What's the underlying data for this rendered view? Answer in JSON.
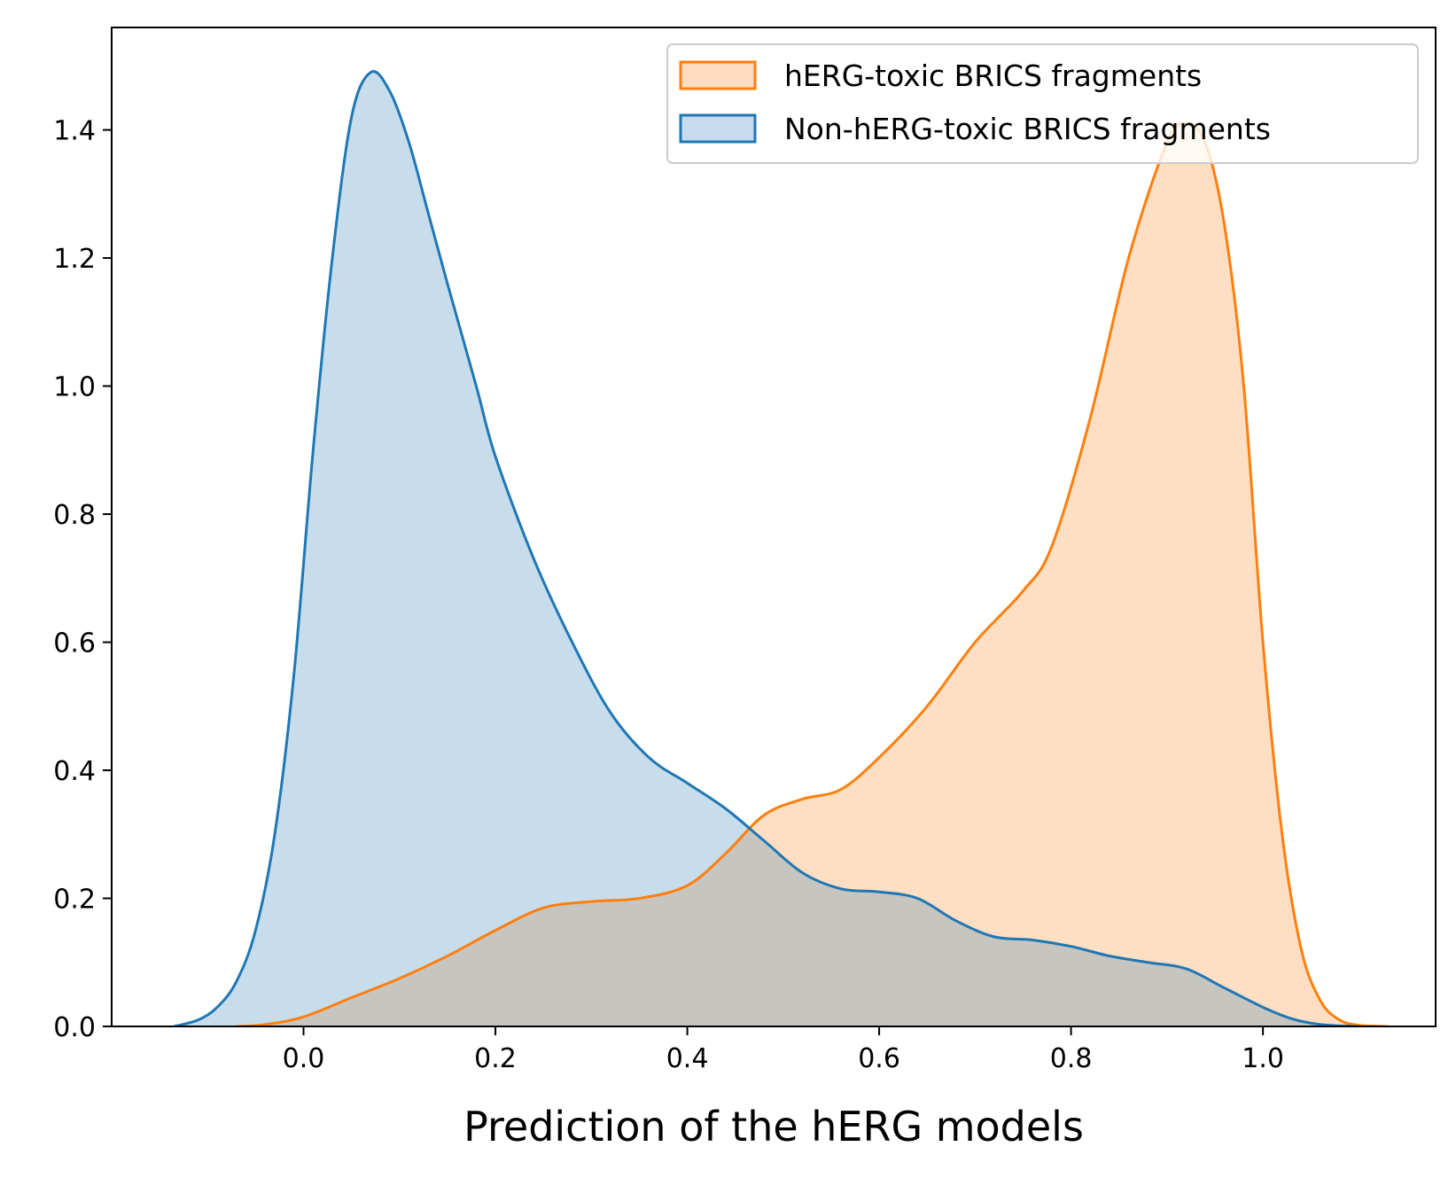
{
  "chart_data": {
    "type": "area",
    "title": "",
    "xlabel": "Prediction of the hERG models",
    "ylabel": "",
    "xlim": [
      -0.2,
      1.18
    ],
    "ylim": [
      0,
      1.56
    ],
    "xticks": [
      0.0,
      0.2,
      0.4,
      0.6,
      0.8,
      1.0
    ],
    "xtick_labels": [
      "0.0",
      "0.2",
      "0.4",
      "0.6",
      "0.8",
      "1.0"
    ],
    "yticks": [
      0.0,
      0.2,
      0.4,
      0.6,
      0.8,
      1.0,
      1.2,
      1.4
    ],
    "ytick_labels": [
      "0.0",
      "0.2",
      "0.4",
      "0.6",
      "0.8",
      "1.0",
      "1.2",
      "1.4"
    ],
    "grid": false,
    "legend_position": "top-right",
    "series": [
      {
        "name": "hERG-toxic BRICS fragments",
        "color": "#ff7f0e",
        "fill_color": "#ffdcbf",
        "x": [
          -0.07,
          -0.04,
          0.0,
          0.05,
          0.1,
          0.15,
          0.2,
          0.25,
          0.3,
          0.35,
          0.4,
          0.44,
          0.48,
          0.52,
          0.56,
          0.6,
          0.65,
          0.7,
          0.75,
          0.78,
          0.82,
          0.86,
          0.9,
          0.92,
          0.94,
          0.96,
          0.98,
          1.0,
          1.02,
          1.04,
          1.06,
          1.08,
          1.1,
          1.13
        ],
        "y": [
          0.0,
          0.003,
          0.015,
          0.045,
          0.075,
          0.11,
          0.15,
          0.185,
          0.195,
          0.2,
          0.22,
          0.27,
          0.33,
          0.355,
          0.37,
          0.42,
          0.5,
          0.6,
          0.68,
          0.75,
          0.95,
          1.2,
          1.38,
          1.41,
          1.38,
          1.25,
          1.0,
          0.6,
          0.3,
          0.12,
          0.04,
          0.01,
          0.002,
          0.0
        ]
      },
      {
        "name": "Non-hERG-toxic BRICS fragments",
        "color": "#1f77b4",
        "fill_color": "#c6dbed",
        "x": [
          -0.135,
          -0.11,
          -0.09,
          -0.07,
          -0.05,
          -0.03,
          -0.01,
          0.01,
          0.03,
          0.05,
          0.07,
          0.09,
          0.11,
          0.13,
          0.15,
          0.18,
          0.2,
          0.24,
          0.28,
          0.32,
          0.36,
          0.4,
          0.44,
          0.48,
          0.52,
          0.56,
          0.6,
          0.64,
          0.68,
          0.72,
          0.76,
          0.8,
          0.84,
          0.88,
          0.92,
          0.96,
          1.0,
          1.03,
          1.06,
          1.1
        ],
        "y": [
          0.0,
          0.01,
          0.03,
          0.07,
          0.15,
          0.3,
          0.55,
          0.9,
          1.2,
          1.42,
          1.49,
          1.46,
          1.38,
          1.27,
          1.16,
          1.0,
          0.89,
          0.73,
          0.6,
          0.49,
          0.42,
          0.38,
          0.34,
          0.29,
          0.24,
          0.215,
          0.21,
          0.2,
          0.165,
          0.14,
          0.135,
          0.125,
          0.11,
          0.1,
          0.09,
          0.06,
          0.03,
          0.012,
          0.003,
          0.0
        ]
      }
    ]
  }
}
